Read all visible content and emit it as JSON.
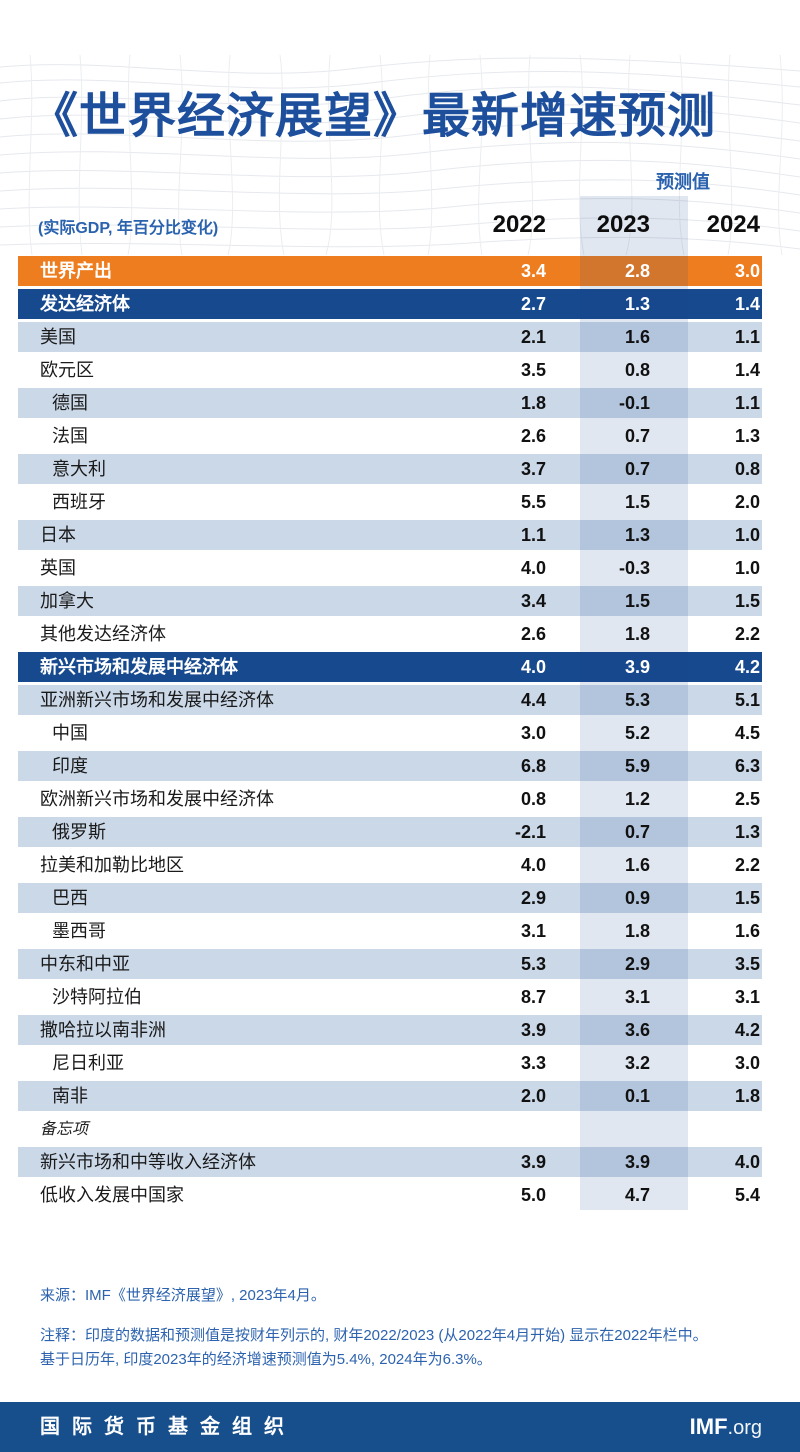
{
  "header": {
    "title": "《世界经济展望》最新增速预测",
    "subtitle": "(实际GDP, 年百分比变化)",
    "forecast_label": "预测值",
    "columns": [
      "2022",
      "2023",
      "2024"
    ]
  },
  "table": {
    "rows": [
      {
        "label": "世界产出",
        "style": "orange",
        "indent": false,
        "memo": false,
        "values": [
          "3.4",
          "2.8",
          "3.0"
        ]
      },
      {
        "label": "发达经济体",
        "style": "navy",
        "indent": false,
        "memo": false,
        "values": [
          "2.7",
          "1.3",
          "1.4"
        ]
      },
      {
        "label": "美国",
        "style": "light",
        "indent": false,
        "memo": false,
        "values": [
          "2.1",
          "1.6",
          "1.1"
        ]
      },
      {
        "label": "欧元区",
        "style": "white",
        "indent": false,
        "memo": false,
        "values": [
          "3.5",
          "0.8",
          "1.4"
        ]
      },
      {
        "label": "德国",
        "style": "light",
        "indent": true,
        "memo": false,
        "values": [
          "1.8",
          "-0.1",
          "1.1"
        ]
      },
      {
        "label": "法国",
        "style": "white",
        "indent": true,
        "memo": false,
        "values": [
          "2.6",
          "0.7",
          "1.3"
        ]
      },
      {
        "label": "意大利",
        "style": "light",
        "indent": true,
        "memo": false,
        "values": [
          "3.7",
          "0.7",
          "0.8"
        ]
      },
      {
        "label": "西班牙",
        "style": "white",
        "indent": true,
        "memo": false,
        "values": [
          "5.5",
          "1.5",
          "2.0"
        ]
      },
      {
        "label": "日本",
        "style": "light",
        "indent": false,
        "memo": false,
        "values": [
          "1.1",
          "1.3",
          "1.0"
        ]
      },
      {
        "label": "英国",
        "style": "white",
        "indent": false,
        "memo": false,
        "values": [
          "4.0",
          "-0.3",
          "1.0"
        ]
      },
      {
        "label": "加拿大",
        "style": "light",
        "indent": false,
        "memo": false,
        "values": [
          "3.4",
          "1.5",
          "1.5"
        ]
      },
      {
        "label": "其他发达经济体",
        "style": "white",
        "indent": false,
        "memo": false,
        "values": [
          "2.6",
          "1.8",
          "2.2"
        ]
      },
      {
        "label": "新兴市场和发展中经济体",
        "style": "navy",
        "indent": false,
        "memo": false,
        "values": [
          "4.0",
          "3.9",
          "4.2"
        ]
      },
      {
        "label": "亚洲新兴市场和发展中经济体",
        "style": "light",
        "indent": false,
        "memo": false,
        "values": [
          "4.4",
          "5.3",
          "5.1"
        ]
      },
      {
        "label": "中国",
        "style": "white",
        "indent": true,
        "memo": false,
        "values": [
          "3.0",
          "5.2",
          "4.5"
        ]
      },
      {
        "label": "印度",
        "style": "light",
        "indent": true,
        "memo": false,
        "values": [
          "6.8",
          "5.9",
          "6.3"
        ]
      },
      {
        "label": "欧洲新兴市场和发展中经济体",
        "style": "white",
        "indent": false,
        "memo": false,
        "values": [
          "0.8",
          "1.2",
          "2.5"
        ]
      },
      {
        "label": "俄罗斯",
        "style": "light",
        "indent": true,
        "memo": false,
        "values": [
          "-2.1",
          "0.7",
          "1.3"
        ]
      },
      {
        "label": "拉美和加勒比地区",
        "style": "white",
        "indent": false,
        "memo": false,
        "values": [
          "4.0",
          "1.6",
          "2.2"
        ]
      },
      {
        "label": "巴西",
        "style": "light",
        "indent": true,
        "memo": false,
        "values": [
          "2.9",
          "0.9",
          "1.5"
        ]
      },
      {
        "label": "墨西哥",
        "style": "white",
        "indent": true,
        "memo": false,
        "values": [
          "3.1",
          "1.8",
          "1.6"
        ]
      },
      {
        "label": "中东和中亚",
        "style": "light",
        "indent": false,
        "memo": false,
        "values": [
          "5.3",
          "2.9",
          "3.5"
        ]
      },
      {
        "label": "沙特阿拉伯",
        "style": "white",
        "indent": true,
        "memo": false,
        "values": [
          "8.7",
          "3.1",
          "3.1"
        ]
      },
      {
        "label": "撒哈拉以南非洲",
        "style": "light",
        "indent": false,
        "memo": false,
        "values": [
          "3.9",
          "3.6",
          "4.2"
        ]
      },
      {
        "label": "尼日利亚",
        "style": "white",
        "indent": true,
        "memo": false,
        "values": [
          "3.3",
          "3.2",
          "3.0"
        ]
      },
      {
        "label": "南非",
        "style": "light",
        "indent": true,
        "memo": false,
        "values": [
          "2.0",
          "0.1",
          "1.8"
        ]
      },
      {
        "label": "备忘项",
        "style": "white",
        "indent": false,
        "memo": true,
        "values": [
          "",
          "",
          ""
        ]
      },
      {
        "label": "新兴市场和中等收入经济体",
        "style": "light",
        "indent": false,
        "memo": false,
        "values": [
          "3.9",
          "3.9",
          "4.0"
        ]
      },
      {
        "label": "低收入发展中国家",
        "style": "white",
        "indent": false,
        "memo": false,
        "values": [
          "5.0",
          "4.7",
          "5.4"
        ]
      }
    ]
  },
  "footer": {
    "source": "来源：IMF《世界经济展望》, 2023年4月。",
    "note_line1": "注释：印度的数据和预测值是按财年列示的, 财年2022/2023 (从2022年4月开始) 显示在2022年栏中。",
    "note_line2": "基于日历年, 印度2023年的经济增速预测值为5.4%, 2024年为6.3%。",
    "org_name": "国际货币基金组织",
    "site_bold": "IMF",
    "site_rest": ".org"
  },
  "colors": {
    "title_blue": "#1D4F9C",
    "label_blue": "#2A62AE",
    "orange_row": "#EE7D1F",
    "navy_row": "#17498E",
    "light_blue_row": "#CBD8E8",
    "forecast_band_tint": "rgba(23,73,142,0.13)",
    "footer_bar": "#174E8C",
    "mesh_line": "#E2E5EA"
  },
  "chart_data": {
    "type": "table",
    "title": "《世界经济展望》最新增速预测",
    "subtitle": "实际GDP, 年百分比变化",
    "columns": [
      "2022",
      "2023",
      "2024"
    ],
    "forecast_columns": [
      "2023",
      "2024"
    ],
    "rows": [
      {
        "label": "世界产出",
        "values": [
          3.4,
          2.8,
          3.0
        ]
      },
      {
        "label": "发达经济体",
        "values": [
          2.7,
          1.3,
          1.4
        ]
      },
      {
        "label": "美国",
        "values": [
          2.1,
          1.6,
          1.1
        ]
      },
      {
        "label": "欧元区",
        "values": [
          3.5,
          0.8,
          1.4
        ]
      },
      {
        "label": "德国",
        "values": [
          1.8,
          -0.1,
          1.1
        ]
      },
      {
        "label": "法国",
        "values": [
          2.6,
          0.7,
          1.3
        ]
      },
      {
        "label": "意大利",
        "values": [
          3.7,
          0.7,
          0.8
        ]
      },
      {
        "label": "西班牙",
        "values": [
          5.5,
          1.5,
          2.0
        ]
      },
      {
        "label": "日本",
        "values": [
          1.1,
          1.3,
          1.0
        ]
      },
      {
        "label": "英国",
        "values": [
          4.0,
          -0.3,
          1.0
        ]
      },
      {
        "label": "加拿大",
        "values": [
          3.4,
          1.5,
          1.5
        ]
      },
      {
        "label": "其他发达经济体",
        "values": [
          2.6,
          1.8,
          2.2
        ]
      },
      {
        "label": "新兴市场和发展中经济体",
        "values": [
          4.0,
          3.9,
          4.2
        ]
      },
      {
        "label": "亚洲新兴市场和发展中经济体",
        "values": [
          4.4,
          5.3,
          5.1
        ]
      },
      {
        "label": "中国",
        "values": [
          3.0,
          5.2,
          4.5
        ]
      },
      {
        "label": "印度",
        "values": [
          6.8,
          5.9,
          6.3
        ]
      },
      {
        "label": "欧洲新兴市场和发展中经济体",
        "values": [
          0.8,
          1.2,
          2.5
        ]
      },
      {
        "label": "俄罗斯",
        "values": [
          -2.1,
          0.7,
          1.3
        ]
      },
      {
        "label": "拉美和加勒比地区",
        "values": [
          4.0,
          1.6,
          2.2
        ]
      },
      {
        "label": "巴西",
        "values": [
          2.9,
          0.9,
          1.5
        ]
      },
      {
        "label": "墨西哥",
        "values": [
          3.1,
          1.8,
          1.6
        ]
      },
      {
        "label": "中东和中亚",
        "values": [
          5.3,
          2.9,
          3.5
        ]
      },
      {
        "label": "沙特阿拉伯",
        "values": [
          8.7,
          3.1,
          3.1
        ]
      },
      {
        "label": "撒哈拉以南非洲",
        "values": [
          3.9,
          3.6,
          4.2
        ]
      },
      {
        "label": "尼日利亚",
        "values": [
          3.3,
          3.2,
          3.0
        ]
      },
      {
        "label": "南非",
        "values": [
          2.0,
          0.1,
          1.8
        ]
      },
      {
        "label": "备忘项",
        "values": [
          null,
          null,
          null
        ]
      },
      {
        "label": "新兴市场和中等收入经济体",
        "values": [
          3.9,
          3.9,
          4.0
        ]
      },
      {
        "label": "低收入发展中国家",
        "values": [
          5.0,
          4.7,
          5.4
        ]
      }
    ]
  }
}
